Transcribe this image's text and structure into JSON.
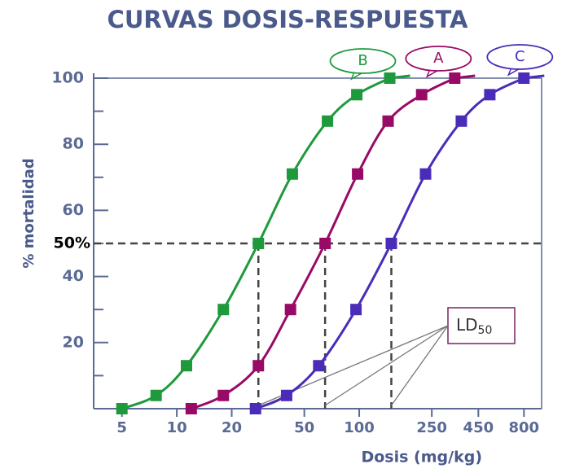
{
  "chart_data": {
    "type": "line",
    "title": "CURVAS DOSIS-RESPUESTA",
    "x_label": "Dosis (mg/kg)",
    "y_label": "% mortalidad",
    "xscale": "log",
    "xlim": [
      3.5,
      1000
    ],
    "xticks": [
      5,
      10,
      20,
      50,
      100,
      250,
      450,
      800
    ],
    "ylim": [
      0,
      100
    ],
    "yticks": [
      20,
      40,
      60,
      80,
      100
    ],
    "minor_yticks": [
      10,
      30,
      50,
      70,
      90
    ],
    "hline": {
      "value": 50,
      "label": "50%"
    },
    "annotation": {
      "text": "LD",
      "subscript": "50"
    },
    "series": [
      {
        "name": "B",
        "color": "#1e9a3c",
        "x": [
          5,
          7.7,
          11.3,
          18,
          28,
          43,
          67,
          97,
          147
        ],
        "values": [
          0,
          4,
          13,
          30,
          50,
          71,
          87,
          95,
          100
        ]
      },
      {
        "name": "A",
        "color": "#990a66",
        "x": [
          12,
          18,
          28,
          42,
          65,
          98,
          144,
          220,
          334
        ],
        "values": [
          0,
          4,
          13,
          30,
          50,
          71,
          87,
          95,
          100
        ]
      },
      {
        "name": "C",
        "color": "#4a2cb8",
        "x": [
          27,
          40,
          60,
          96,
          150,
          231,
          363,
          520,
          800
        ],
        "values": [
          0,
          4,
          13,
          30,
          50,
          71,
          87,
          95,
          100
        ]
      }
    ]
  }
}
